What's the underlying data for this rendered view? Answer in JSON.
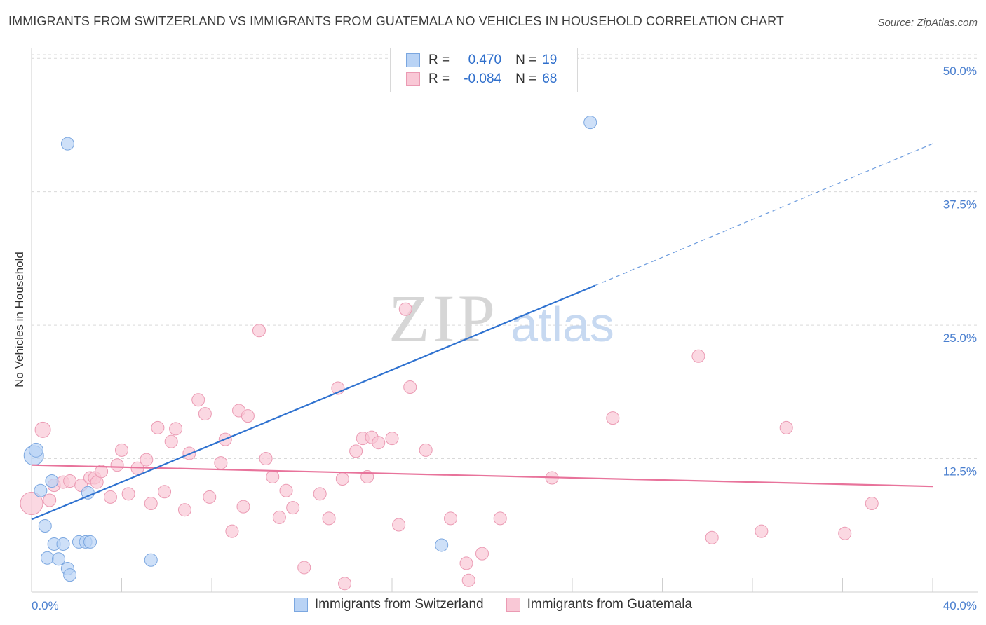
{
  "title": "IMMIGRANTS FROM SWITZERLAND VS IMMIGRANTS FROM GUATEMALA NO VEHICLES IN HOUSEHOLD CORRELATION CHART",
  "source": "Source: ZipAtlas.com",
  "watermark": {
    "zip": "ZIP",
    "atlas": "atlas"
  },
  "legend": {
    "r_label": "R =",
    "n_label": "N =",
    "series": [
      {
        "r": "0.470",
        "n": "19",
        "fill": "#b9d3f5",
        "stroke": "#7ba7e0"
      },
      {
        "r": "-0.084",
        "n": "68",
        "fill": "#f9c8d6",
        "stroke": "#eb9ab3"
      }
    ]
  },
  "colors": {
    "blue_line": "#2f72d0",
    "pink_line": "#e8739b",
    "tick_label": "#4a7fcf",
    "grid": "#d9d9d9"
  },
  "chart_data": {
    "type": "scatter",
    "title": "IMMIGRANTS FROM SWITZERLAND VS IMMIGRANTS FROM GUATEMALA NO VEHICLES IN HOUSEHOLD CORRELATION CHART",
    "xlabel": "",
    "ylabel": "No Vehicles in Household",
    "xlim": [
      0,
      40
    ],
    "ylim": [
      0,
      51
    ],
    "x_tick_labels": [
      "0.0%",
      "40.0%"
    ],
    "y_ticks": [
      12.5,
      25.0,
      37.5,
      50.0
    ],
    "y_tick_labels": [
      "12.5%",
      "25.0%",
      "37.5%",
      "50.0%"
    ],
    "grid": true,
    "legend_position": "top-center",
    "series": [
      {
        "name": "Immigrants from Switzerland",
        "color": "#b9d3f5",
        "stroke": "#7ba7e0",
        "points": [
          [
            0.1,
            12.8,
            14
          ],
          [
            0.2,
            13.3,
            10
          ],
          [
            0.4,
            9.5,
            9
          ],
          [
            0.6,
            6.2,
            9
          ],
          [
            0.7,
            3.2,
            9
          ],
          [
            0.9,
            10.4,
            9
          ],
          [
            1.0,
            4.5,
            9
          ],
          [
            1.2,
            3.1,
            9
          ],
          [
            1.4,
            4.5,
            9
          ],
          [
            1.6,
            2.2,
            9
          ],
          [
            1.7,
            1.6,
            9
          ],
          [
            1.6,
            42.0,
            9
          ],
          [
            2.1,
            4.7,
            9
          ],
          [
            2.4,
            4.7,
            9
          ],
          [
            2.6,
            4.7,
            9
          ],
          [
            2.5,
            9.3,
            9
          ],
          [
            5.3,
            3.0,
            9
          ],
          [
            18.2,
            4.4,
            9
          ],
          [
            24.8,
            44.0,
            9
          ]
        ],
        "trend": {
          "x": [
            0,
            25.0
          ],
          "y": [
            6.8,
            28.7
          ]
        },
        "trend_dashed": {
          "x": [
            25.0,
            40.0
          ],
          "y": [
            28.7,
            42.0
          ]
        }
      },
      {
        "name": "Immigrants from Guatemala",
        "color": "#f9c8d6",
        "stroke": "#eb9ab3",
        "points": [
          [
            0.0,
            8.3,
            16
          ],
          [
            0.5,
            15.2,
            11
          ],
          [
            0.8,
            8.6,
            9
          ],
          [
            1.0,
            10.0,
            9
          ],
          [
            1.4,
            10.3,
            9
          ],
          [
            1.7,
            10.4,
            9
          ],
          [
            2.2,
            10.0,
            9
          ],
          [
            2.6,
            10.7,
            9
          ],
          [
            2.8,
            10.7,
            9
          ],
          [
            2.9,
            10.3,
            9
          ],
          [
            3.1,
            11.3,
            9
          ],
          [
            3.5,
            8.9,
            9
          ],
          [
            3.8,
            11.9,
            9
          ],
          [
            4.0,
            13.3,
            9
          ],
          [
            4.3,
            9.2,
            9
          ],
          [
            4.7,
            11.6,
            9
          ],
          [
            5.1,
            12.4,
            9
          ],
          [
            5.3,
            8.3,
            9
          ],
          [
            5.6,
            15.4,
            9
          ],
          [
            5.9,
            9.4,
            9
          ],
          [
            6.2,
            14.1,
            9
          ],
          [
            6.4,
            15.3,
            9
          ],
          [
            6.8,
            7.7,
            9
          ],
          [
            7.0,
            13.0,
            9
          ],
          [
            7.4,
            18.0,
            9
          ],
          [
            7.7,
            16.7,
            9
          ],
          [
            7.9,
            8.9,
            9
          ],
          [
            8.4,
            12.1,
            9
          ],
          [
            8.6,
            14.3,
            9
          ],
          [
            8.9,
            5.7,
            9
          ],
          [
            9.2,
            17.0,
            9
          ],
          [
            9.4,
            8.0,
            9
          ],
          [
            9.6,
            16.5,
            9
          ],
          [
            10.1,
            24.5,
            9
          ],
          [
            10.4,
            12.5,
            9
          ],
          [
            10.7,
            10.8,
            9
          ],
          [
            11.0,
            7.0,
            9
          ],
          [
            11.3,
            9.5,
            9
          ],
          [
            11.6,
            7.9,
            9
          ],
          [
            12.1,
            2.3,
            9
          ],
          [
            12.8,
            9.2,
            9
          ],
          [
            13.2,
            6.9,
            9
          ],
          [
            13.6,
            19.1,
            9
          ],
          [
            13.8,
            10.6,
            9
          ],
          [
            13.9,
            0.8,
            9
          ],
          [
            14.4,
            13.2,
            9
          ],
          [
            14.7,
            14.4,
            9
          ],
          [
            14.9,
            10.8,
            9
          ],
          [
            15.1,
            14.5,
            9
          ],
          [
            15.4,
            14.0,
            9
          ],
          [
            16.0,
            14.4,
            9
          ],
          [
            16.3,
            6.3,
            9
          ],
          [
            16.6,
            26.5,
            9
          ],
          [
            16.8,
            19.2,
            9
          ],
          [
            17.5,
            13.3,
            9
          ],
          [
            18.6,
            6.9,
            9
          ],
          [
            19.3,
            2.7,
            9
          ],
          [
            19.4,
            1.1,
            9
          ],
          [
            20.0,
            3.6,
            9
          ],
          [
            20.8,
            6.9,
            9
          ],
          [
            23.1,
            10.7,
            9
          ],
          [
            25.8,
            16.3,
            9
          ],
          [
            29.6,
            22.1,
            9
          ],
          [
            30.2,
            5.1,
            9
          ],
          [
            32.4,
            5.7,
            9
          ],
          [
            33.5,
            15.4,
            9
          ],
          [
            36.1,
            5.5,
            9
          ],
          [
            37.3,
            8.3,
            9
          ]
        ],
        "trend": {
          "x": [
            0,
            40.0
          ],
          "y": [
            11.9,
            9.9
          ]
        }
      }
    ]
  },
  "bottom_legend": [
    "Immigrants from Switzerland",
    "Immigrants from Guatemala"
  ]
}
